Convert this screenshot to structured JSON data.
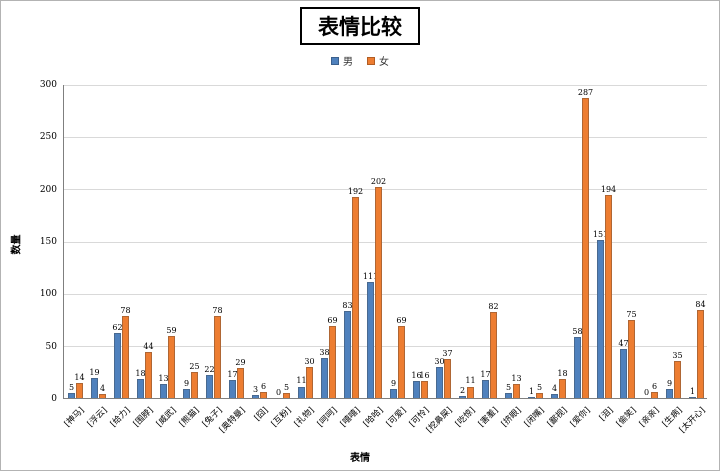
{
  "title": "表情比较",
  "legend": {
    "items": [
      {
        "label": "男",
        "color": "#4f81bd"
      },
      {
        "label": "女",
        "color": "#ed7d31"
      }
    ]
  },
  "axes": {
    "x_title": "表情",
    "y_title": "数量"
  },
  "chart_data": {
    "type": "bar",
    "title": "表情比较",
    "xlabel": "表情",
    "ylabel": "数量",
    "ylim": [
      0,
      300
    ],
    "yticks": [
      0,
      50,
      100,
      150,
      200,
      250,
      300
    ],
    "grid": true,
    "legend_position": "top",
    "categories": [
      "[神马]",
      "[浮云]",
      "[给力]",
      "[围脖]",
      "[威武]",
      "[熊猫]",
      "[兔子]",
      "[奥特曼]",
      "[囧]",
      "[互粉]",
      "[礼物]",
      "[呵呵]",
      "[嘻嘻]",
      "[哈哈]",
      "[可爱]",
      "[可怜]",
      "[挖鼻屎]",
      "[吃惊]",
      "[害羞]",
      "[挤眼]",
      "[闭嘴]",
      "[鄙视]",
      "[爱你]",
      "[泪]",
      "[偷笑]",
      "[亲亲]",
      "[生病]",
      "[太开心]"
    ],
    "series": [
      {
        "name": "男",
        "color": "#4f81bd",
        "values": [
          5,
          19,
          62,
          18,
          13,
          9,
          22,
          17,
          3,
          0,
          11,
          38,
          83,
          111,
          9,
          16,
          30,
          2,
          17,
          5,
          1,
          4,
          58,
          151,
          47,
          0,
          9,
          1
        ]
      },
      {
        "name": "女",
        "color": "#ed7d31",
        "values": [
          14,
          4,
          78,
          44,
          59,
          25,
          78,
          29,
          6,
          5,
          30,
          69,
          192,
          202,
          69,
          16,
          37,
          11,
          82,
          13,
          5,
          18,
          287,
          194,
          75,
          6,
          35,
          84
        ]
      }
    ]
  }
}
